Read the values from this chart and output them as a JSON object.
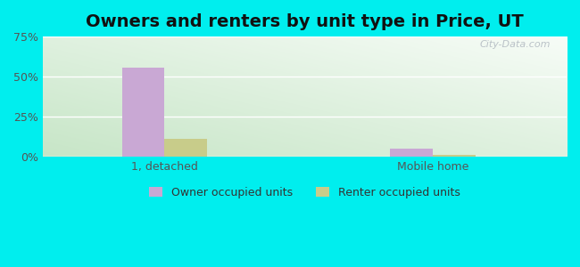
{
  "title": "Owners and renters by unit type in Price, UT",
  "categories": [
    "1, detached",
    "Mobile home"
  ],
  "owner_values": [
    55.5,
    5.0
  ],
  "renter_values": [
    11.5,
    1.2
  ],
  "owner_color": "#c9a8d4",
  "renter_color": "#c8cc8a",
  "ylim": [
    0,
    75
  ],
  "yticks": [
    0,
    25,
    50,
    75
  ],
  "ytick_labels": [
    "0%",
    "25%",
    "50%",
    "75%"
  ],
  "bar_width": 0.35,
  "group_positions": [
    1.0,
    3.2
  ],
  "xlim": [
    0,
    4.3
  ],
  "legend_labels": [
    "Owner occupied units",
    "Renter occupied units"
  ],
  "bg_outer": "#00eeee",
  "title_fontsize": 14,
  "axis_fontsize": 9,
  "legend_fontsize": 9,
  "watermark_text": "City-Data.com"
}
